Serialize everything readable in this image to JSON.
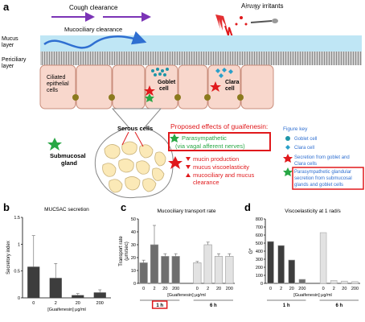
{
  "panel_a": {
    "label": "a",
    "cough_clearance": "Cough clearance",
    "airway_irritants": "Airway irritants",
    "mucus_layer": [
      "Mucus",
      "layer"
    ],
    "mucociliary_clearance": "Mucociliary clearance",
    "periciliary_layer": [
      "Periciliary",
      "layer"
    ],
    "ciliated_cells": [
      "Ciliated",
      "epithelial",
      "cells"
    ],
    "goblet_cell": [
      "Goblet",
      "cell"
    ],
    "clara_cell": [
      "Clara",
      "cell"
    ],
    "serous_cells": "Serous cells",
    "submucosal_gland": [
      "Submucosal",
      "gland"
    ],
    "proposed_title": "Proposed effects of guaifenesin:",
    "effects": [
      "Parasympathetic",
      "(via vagal afferent nerves)",
      "mucin production",
      "mucus viscoelasticity",
      "mucociliary and mucus",
      "clearance"
    ],
    "figure_key": {
      "title": "Figure key",
      "items": [
        "Goblet cell",
        "Clara cell",
        "Secretion from goblet and",
        "Clara cells",
        "Parasympathetic glandular",
        "secretion from submucosal",
        "glands and goblet cells"
      ]
    }
  },
  "panel_b": {
    "label": "b",
    "chart_data": {
      "type": "bar",
      "title": "MUC5AC secretion",
      "ylabel": "Secretory index",
      "xlabel": "[Guaifenesin] μg/ml",
      "categories": [
        "0",
        "2",
        "20",
        "200"
      ],
      "values": [
        0.58,
        0.37,
        0.05,
        0.1
      ],
      "errors": [
        0.58,
        0.27,
        0.03,
        0.05
      ],
      "ylim": [
        0,
        1.5
      ],
      "yticks": [
        "0",
        "0.5",
        "1",
        "1.5"
      ]
    }
  },
  "panel_c": {
    "label": "c",
    "chart_data": {
      "type": "bar",
      "title": "Mucociliary transport rate",
      "ylabel": [
        "Transport rate",
        "(μm/sec)"
      ],
      "xlabel": "[Guaifenesin] μg/ml",
      "groups": [
        "1 h",
        "6 h"
      ],
      "categories": [
        "0",
        "2",
        "20",
        "200",
        "0",
        "2",
        "20",
        "200"
      ],
      "values": [
        16,
        30,
        21,
        21,
        16,
        30,
        21,
        21
      ],
      "errors": [
        2,
        15,
        2,
        2,
        1,
        2,
        2,
        2
      ],
      "ylim": [
        0,
        50
      ],
      "yticks": [
        "0",
        "10",
        "20",
        "30",
        "40",
        "50"
      ]
    }
  },
  "panel_d": {
    "label": "d",
    "chart_data": {
      "type": "bar",
      "title": "Viscoelasticity at 1 rad/s",
      "ylabel": "G*",
      "xlabel": "[Guaifenesin] μg/ml",
      "groups": [
        "1 h",
        "6 h"
      ],
      "categories": [
        "0",
        "2",
        "20",
        "200",
        "0",
        "2",
        "20",
        "200"
      ],
      "values": [
        520,
        470,
        290,
        50,
        630,
        35,
        28,
        22
      ],
      "ylim": [
        0,
        800
      ],
      "yticks": [
        "0",
        "100",
        "200",
        "300",
        "400",
        "500",
        "600",
        "700",
        "800"
      ]
    }
  },
  "colors": {
    "dark_bar": "#3d3d3d",
    "mid_bar": "#6e6e6e",
    "light_bar": "#e2e2e2",
    "red": "#e0191c",
    "purple": "#7b34b6",
    "blue": "#2f6fd1",
    "green": "#28a745",
    "teal": "#1f96a8",
    "mucus": "#bfe6f5",
    "cell_fill": "#f8d7cc",
    "cilia_grey": "#9a9a9a"
  }
}
